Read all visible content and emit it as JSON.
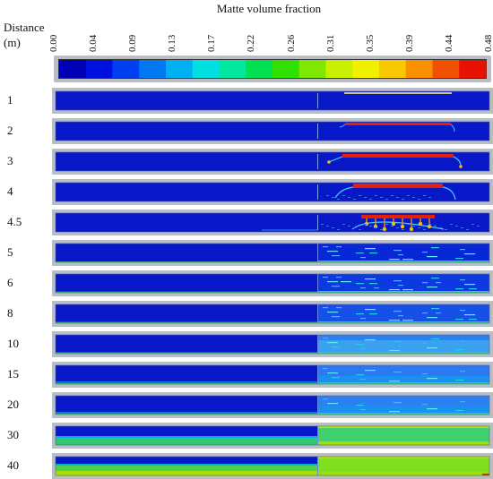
{
  "colorbar": {
    "title": "Matte volume fraction",
    "distance_label_line1": "Distance",
    "distance_label_line2": "(m)",
    "ticks": [
      "0.00",
      "0.04",
      "0.09",
      "0.13",
      "0.17",
      "0.22",
      "0.26",
      "0.31",
      "0.35",
      "0.39",
      "0.44",
      "0.48"
    ],
    "colors": [
      "#0000b4",
      "#0010e0",
      "#0040f0",
      "#0078f0",
      "#00b0f0",
      "#00e0e0",
      "#00e8a0",
      "#00e050",
      "#30e000",
      "#80e800",
      "#c8f000",
      "#f0f000",
      "#f8c800",
      "#f89000",
      "#f05000",
      "#e81000"
    ]
  },
  "rows": [
    {
      "label": "1"
    },
    {
      "label": "2"
    },
    {
      "label": "3"
    },
    {
      "label": "4"
    },
    {
      "label": "4.5"
    },
    {
      "label": "5"
    },
    {
      "label": "6"
    },
    {
      "label": "8"
    },
    {
      "label": "10"
    },
    {
      "label": "15"
    },
    {
      "label": "20"
    },
    {
      "label": "30"
    },
    {
      "label": "40"
    }
  ],
  "colors": {
    "background_blue": "#0818c8",
    "frame_gray": "#b9bec6",
    "hot": "#e82000"
  }
}
